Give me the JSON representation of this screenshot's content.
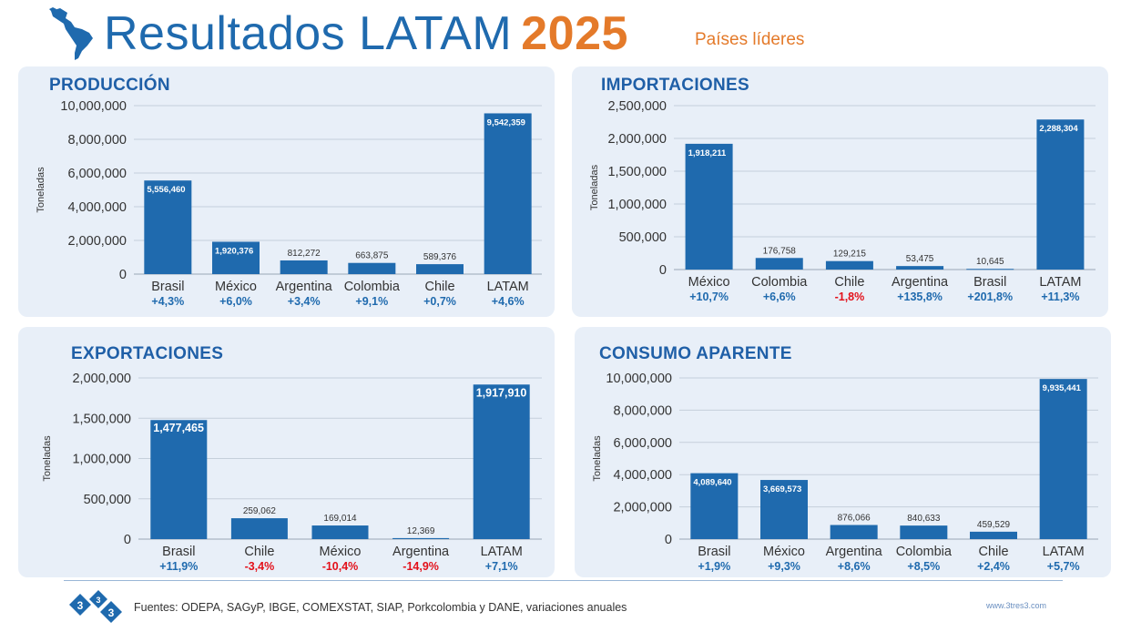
{
  "header": {
    "title": "Resultados LATAM",
    "year": "2025",
    "subtitle": "Países líderes"
  },
  "colors": {
    "bar": "#1f6aae",
    "positive": "#1f6aae",
    "negative": "#e3101a",
    "panel_bg": "#e8eff8",
    "accent": "#e47a2a"
  },
  "chart_data": [
    {
      "id": "produccion",
      "type": "bar",
      "title": "PRODUCCIÓN",
      "ylabel": "Toneladas",
      "ylim": [
        0,
        10000000
      ],
      "yticks": [
        "0",
        "2,000,000",
        "4,000,000",
        "6,000,000",
        "8,000,000",
        "10,000,000"
      ],
      "categories": [
        "Brasil",
        "México",
        "Argentina",
        "Colombia",
        "Chile",
        "LATAM"
      ],
      "values": [
        5556460,
        1920376,
        812272,
        663875,
        589376,
        9542359
      ],
      "labels": [
        "5,556,460",
        "1,920,376",
        "812,272",
        "663,875",
        "589,376",
        "9,542,359"
      ],
      "variations": [
        "+4,3%",
        "+6,0%",
        "+3,4%",
        "+9,1%",
        "+0,7%",
        "+4,6%"
      ]
    },
    {
      "id": "importaciones",
      "type": "bar",
      "title": "IMPORTACIONES",
      "ylabel": "Toneladas",
      "ylim": [
        0,
        2500000
      ],
      "yticks": [
        "0",
        "500,000",
        "1,000,000",
        "1,500,000",
        "2,000,000",
        "2,500,000"
      ],
      "categories": [
        "México",
        "Colombia",
        "Chile",
        "Argentina",
        "Brasil",
        "LATAM"
      ],
      "values": [
        1918211,
        176758,
        129215,
        53475,
        10645,
        2288304
      ],
      "labels": [
        "1,918,211",
        "176,758",
        "129,215",
        "53,475",
        "10,645",
        "2,288,304"
      ],
      "variations": [
        "+10,7%",
        "+6,6%",
        "-1,8%",
        "+135,8%",
        "+201,8%",
        "+11,3%"
      ]
    },
    {
      "id": "exportaciones",
      "type": "bar",
      "title": "EXPORTACIONES",
      "ylabel": "Toneladas",
      "ylim": [
        0,
        2000000
      ],
      "yticks": [
        "0",
        "500,000",
        "1,000,000",
        "1,500,000",
        "2,000,000"
      ],
      "categories": [
        "Brasil",
        "Chile",
        "México",
        "Argentina",
        "LATAM"
      ],
      "values": [
        1477465,
        259062,
        169014,
        12369,
        1917910
      ],
      "labels": [
        "1,477,465",
        "259,062",
        "169,014",
        "12,369",
        "1,917,910"
      ],
      "variations": [
        "+11,9%",
        "-3,4%",
        "-10,4%",
        "-14,9%",
        "+7,1%"
      ]
    },
    {
      "id": "consumo",
      "type": "bar",
      "title": "CONSUMO APARENTE",
      "ylabel": "Toneladas",
      "ylim": [
        0,
        10000000
      ],
      "yticks": [
        "0",
        "2,000,000",
        "4,000,000",
        "6,000,000",
        "8,000,000",
        "10,000,000"
      ],
      "categories": [
        "Brasil",
        "México",
        "Argentina",
        "Colombia",
        "Chile",
        "LATAM"
      ],
      "values": [
        4089640,
        3669573,
        876066,
        840633,
        459529,
        9935441
      ],
      "labels": [
        "4,089,640",
        "3,669,573",
        "876,066",
        "840,633",
        "459,529",
        "9,935,441"
      ],
      "variations": [
        "+1,9%",
        "+9,3%",
        "+8,6%",
        "+8,5%",
        "+2,4%",
        "+5,7%"
      ]
    }
  ],
  "footer": {
    "logo_text": [
      "3",
      "3",
      "3"
    ],
    "sources": "Fuentes: ODEPA, SAGyP, IBGE, COMEXSTAT, SIAP, Porkcolombia y DANE, variaciones anuales",
    "url": "www.3tres3.com"
  }
}
